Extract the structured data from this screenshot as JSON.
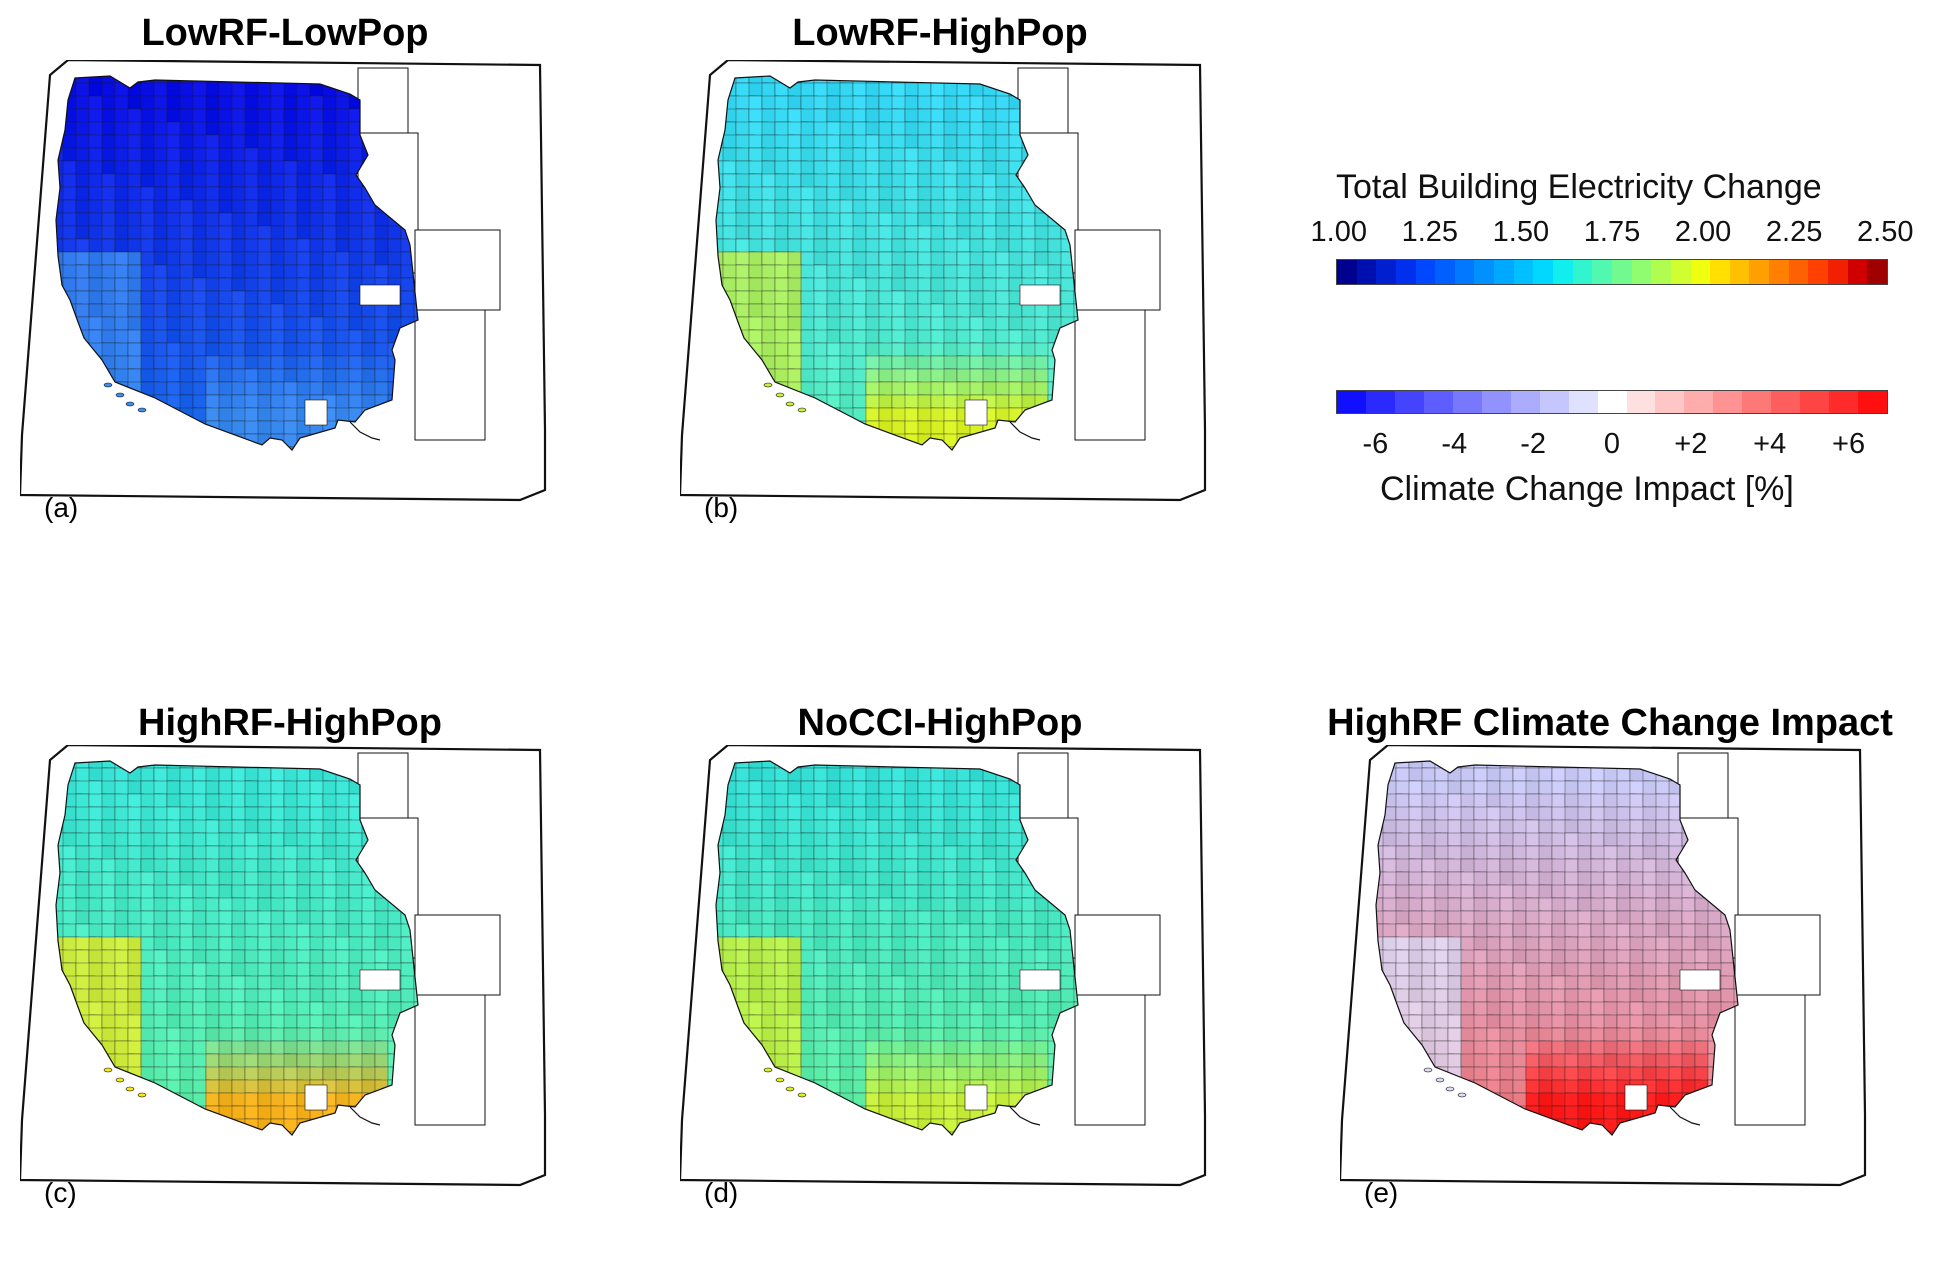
{
  "panels": [
    {
      "id": "a",
      "title": "LowRF-LowPop",
      "label": "(a)",
      "north": "#0a0fe6",
      "south": "#1e6fef",
      "coast": "#3c8ef0",
      "hot": "#3a8bf0"
    },
    {
      "id": "b",
      "title": "LowRF-HighPop",
      "label": "(b)",
      "north": "#35d8f5",
      "south": "#5af0c0",
      "coast": "#c8f03c",
      "hot": "#d9f226"
    },
    {
      "id": "c",
      "title": "HighRF-HighPop",
      "label": "(c)",
      "north": "#3ae6d8",
      "south": "#5ff0a8",
      "coast": "#f5ea14",
      "hot": "#f7b21c"
    },
    {
      "id": "d",
      "title": "NoCCI-HighPop",
      "label": "(d)",
      "north": "#36e2d8",
      "south": "#62f0a2",
      "coast": "#d9f026",
      "hot": "#c9f03a"
    },
    {
      "id": "e",
      "title": "HighRF Climate Change Impact",
      "label": "(e)",
      "north": "#c9c9f7",
      "south": "#f07a80",
      "coast": "#dcdcf7",
      "hot": "#ff1a1a"
    }
  ],
  "colorbars": {
    "electricity": {
      "title": "Total Building Electricity Change",
      "ticks": [
        "1.00",
        "1.25",
        "1.50",
        "1.75",
        "2.00",
        "2.25",
        "2.50"
      ],
      "range": [
        1.0,
        2.5
      ],
      "colors": [
        "#00008f",
        "#0010b0",
        "#0020d0",
        "#0030ee",
        "#0048ff",
        "#0060ff",
        "#0078ff",
        "#0090ff",
        "#00a8ff",
        "#00c0ff",
        "#00d8ff",
        "#10eeee",
        "#30f5cf",
        "#50f8b0",
        "#70fa90",
        "#90fc70",
        "#b0fd50",
        "#d0fe30",
        "#f0ff10",
        "#ffe000",
        "#ffc000",
        "#ffa000",
        "#ff8000",
        "#ff6000",
        "#ff4000",
        "#f02000",
        "#d00000",
        "#a00000"
      ]
    },
    "impact": {
      "title": "Climate Change Impact [%]",
      "ticks": [
        "-6",
        "-4",
        "-2",
        "0",
        "+2",
        "+4",
        "+6"
      ],
      "range": [
        -7,
        7
      ],
      "colors": [
        "#1010ff",
        "#2a2aff",
        "#4444ff",
        "#5e5eff",
        "#7878ff",
        "#9292ff",
        "#acacff",
        "#c6c6ff",
        "#e0e0ff",
        "#ffffff",
        "#ffe0e0",
        "#ffc6c6",
        "#ffacac",
        "#ff9292",
        "#ff7878",
        "#ff5e5e",
        "#ff4444",
        "#ff2a2a",
        "#ff1010"
      ]
    }
  }
}
